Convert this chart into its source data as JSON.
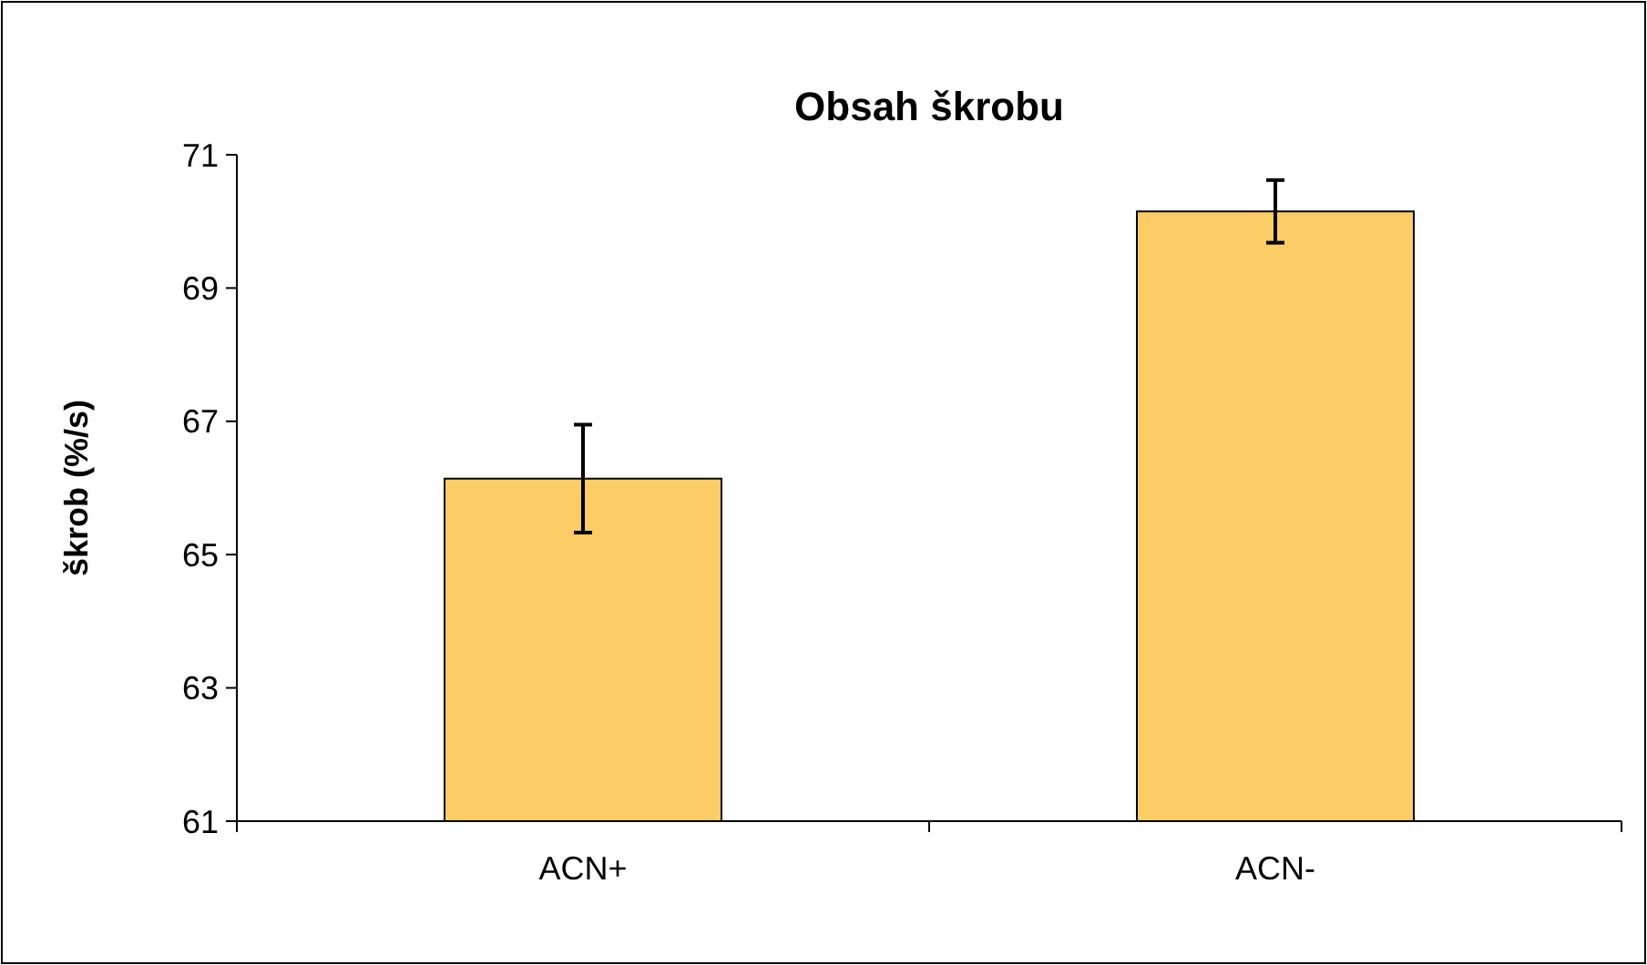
{
  "chart_data": {
    "type": "bar",
    "title": "Obsah škrobu",
    "ylabel": "škrob (%/s)",
    "categories": [
      "ACN+",
      "ACN-"
    ],
    "values": [
      66.14,
      70.15
    ],
    "errors": [
      0.81,
      0.47
    ],
    "color": "#fccc66",
    "ylim": [
      61,
      71
    ],
    "yticks": [
      61,
      63,
      65,
      67,
      69,
      71
    ],
    "grid": false
  }
}
